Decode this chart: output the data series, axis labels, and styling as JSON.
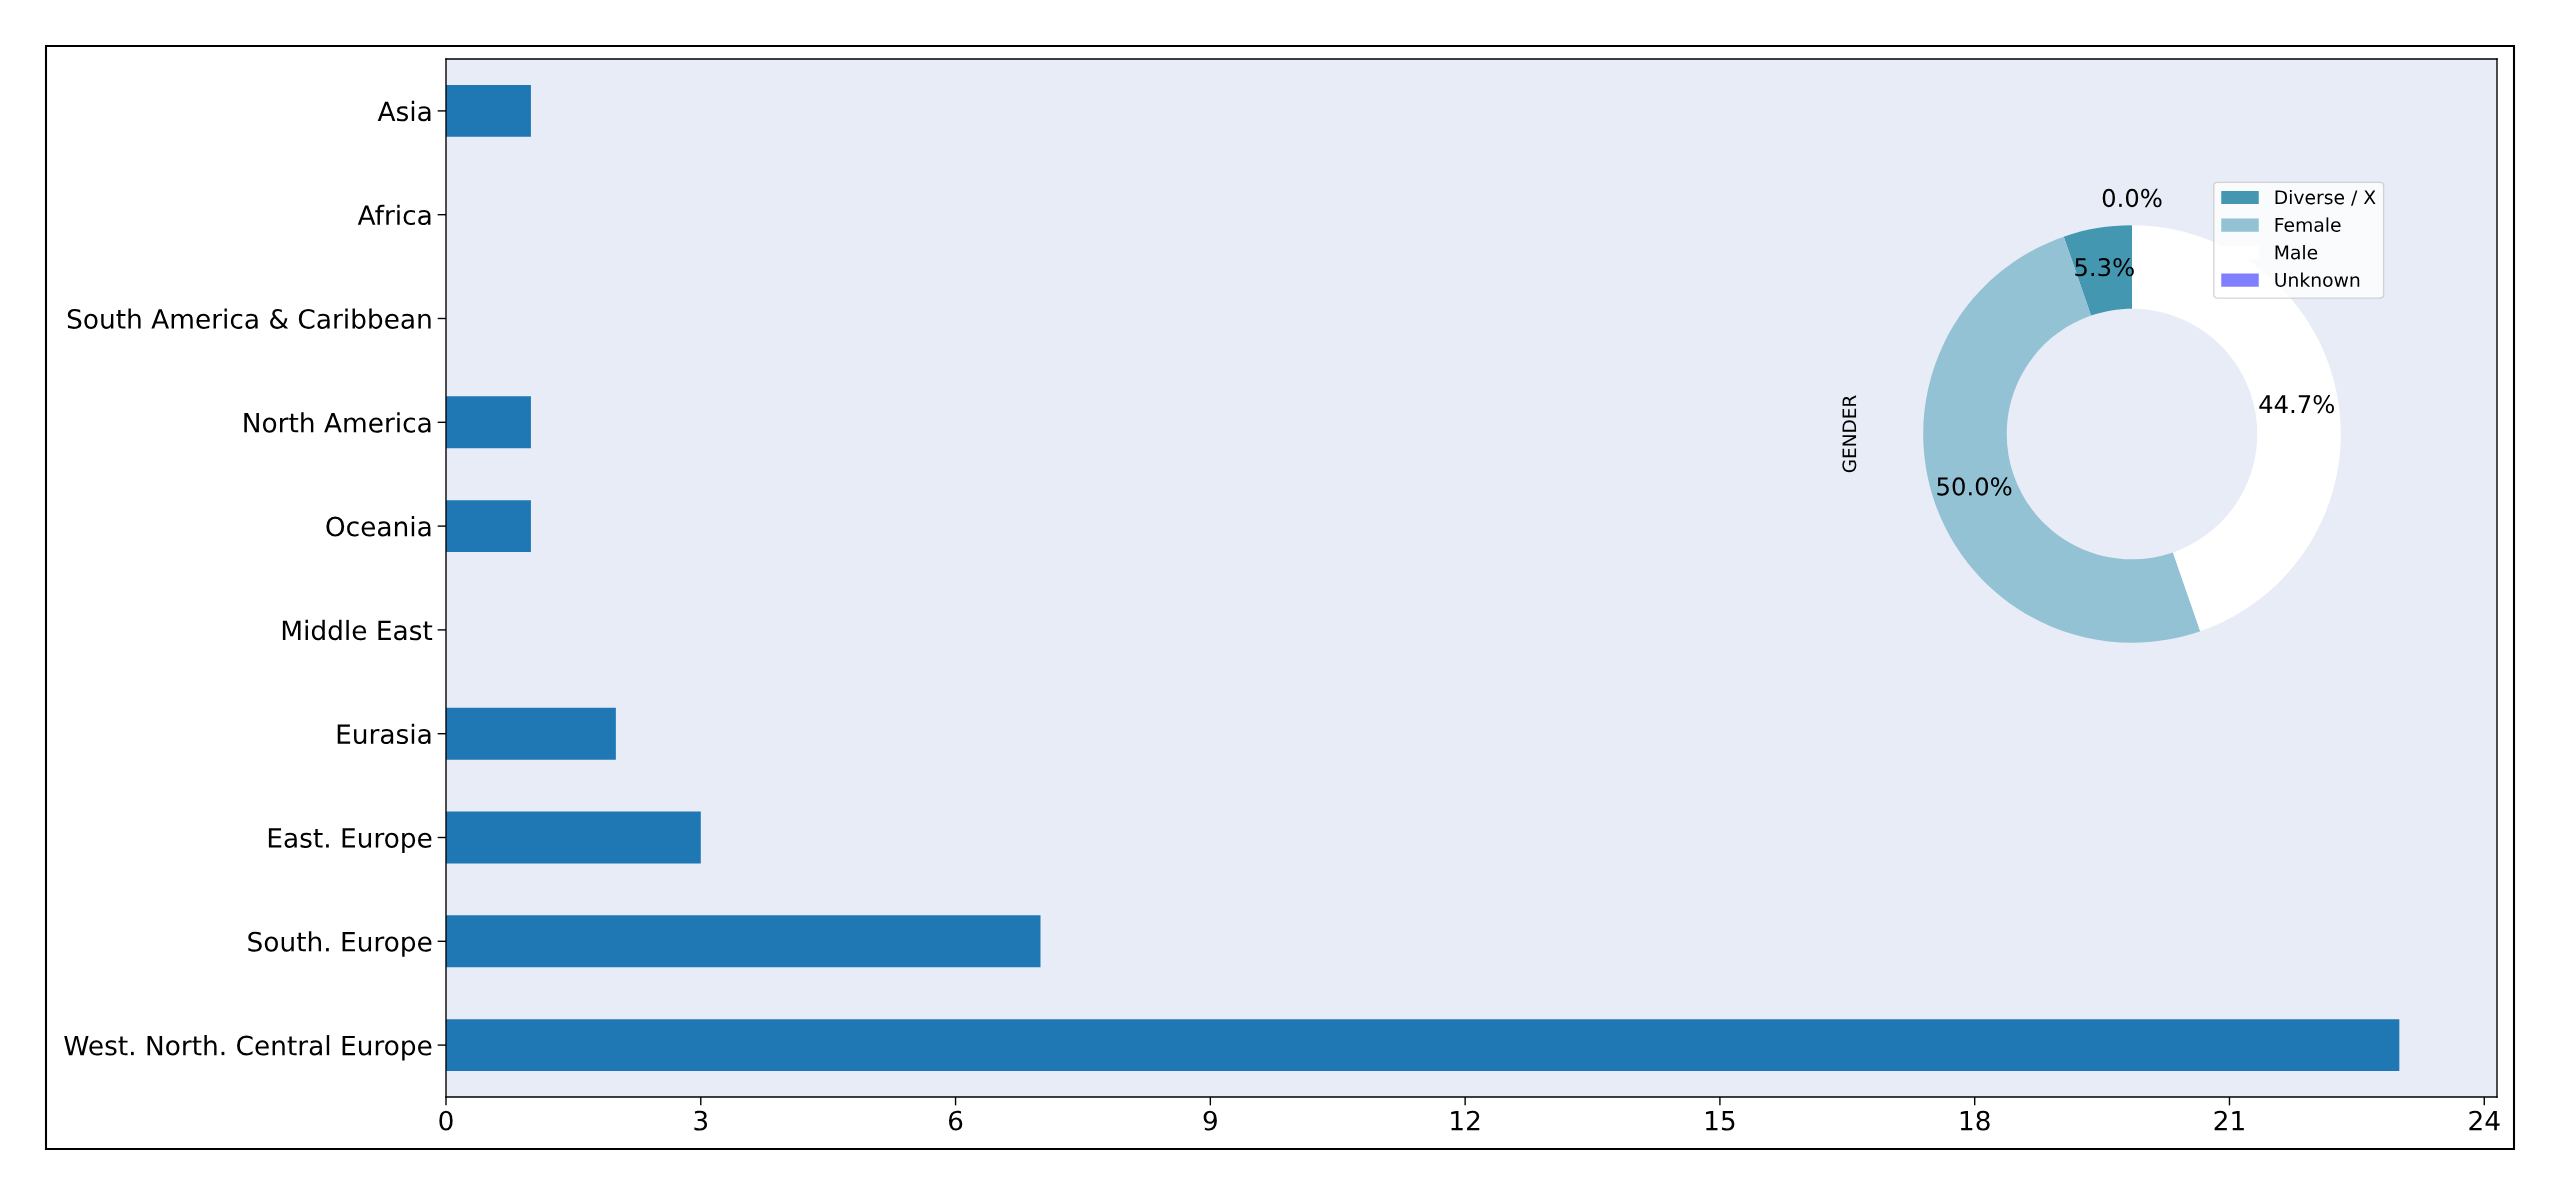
{
  "chart_data": [
    {
      "type": "bar",
      "orientation": "horizontal",
      "categories": [
        "Asia",
        "Africa",
        "South America & Caribbean",
        "North America",
        "Oceania",
        "Middle East",
        "Eurasia",
        "East. Europe",
        "South. Europe",
        "West. North. Central Europe"
      ],
      "values": [
        1,
        0,
        0,
        1,
        1,
        0,
        2,
        3,
        7,
        23
      ],
      "color": "#1f77b4",
      "xlim": [
        0,
        24.15
      ],
      "xticks": [
        0,
        3,
        6,
        9,
        12,
        15,
        18,
        21,
        24
      ],
      "grid": false,
      "legend": false
    },
    {
      "type": "donut",
      "ylabel": "GENDER",
      "categories": [
        "Diverse / X",
        "Female",
        "Male",
        "Unknown"
      ],
      "values": [
        5.3,
        50.0,
        44.7,
        0.0
      ],
      "colors": [
        "#4397b0",
        "#93c2d4",
        "#ffffff",
        "#8080ff"
      ],
      "value_labels": [
        "5.3%",
        "50.0%",
        "44.7%",
        "0.0%"
      ],
      "legend": "top right"
    }
  ]
}
